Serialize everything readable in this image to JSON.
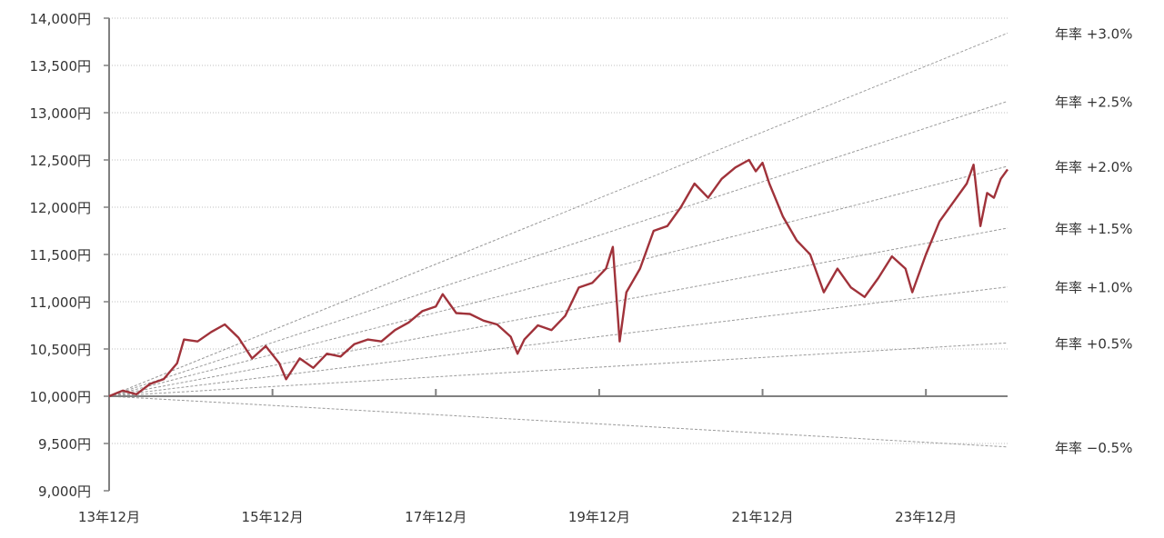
{
  "chart_data": {
    "type": "line",
    "title": "",
    "xlabel": "",
    "ylabel": "",
    "ylim": [
      9000,
      14000
    ],
    "grid": true,
    "y_ticks": [
      9000,
      9500,
      10000,
      10500,
      11000,
      11500,
      12000,
      12500,
      13000,
      13500,
      14000
    ],
    "y_tick_labels": [
      "9,000円",
      "9,500円",
      "10,000円",
      "10,500円",
      "11,000円",
      "11,500円",
      "12,000円",
      "12,500円",
      "13,000円",
      "13,500円",
      "14,000円"
    ],
    "x_range": [
      "2013-12",
      "2024-12"
    ],
    "x_ticks": [
      {
        "label": "13年12月",
        "date": "2013-12"
      },
      {
        "label": "15年12月",
        "date": "2015-12"
      },
      {
        "label": "17年12月",
        "date": "2017-12"
      },
      {
        "label": "19年12月",
        "date": "2019-12"
      },
      {
        "label": "21年12月",
        "date": "2021-12"
      },
      {
        "label": "23年12月",
        "date": "2023-12"
      }
    ],
    "series": [
      {
        "color": "#a0323a",
        "points": [
          [
            "2013-12",
            10000
          ],
          [
            "2014-02",
            10060
          ],
          [
            "2014-04",
            10020
          ],
          [
            "2014-06",
            10130
          ],
          [
            "2014-08",
            10180
          ],
          [
            "2014-10",
            10350
          ],
          [
            "2014-11",
            10600
          ],
          [
            "2015-01",
            10580
          ],
          [
            "2015-03",
            10680
          ],
          [
            "2015-05",
            10760
          ],
          [
            "2015-07",
            10620
          ],
          [
            "2015-09",
            10400
          ],
          [
            "2015-11",
            10530
          ],
          [
            "2016-01",
            10350
          ],
          [
            "2016-02",
            10180
          ],
          [
            "2016-04",
            10400
          ],
          [
            "2016-06",
            10300
          ],
          [
            "2016-08",
            10450
          ],
          [
            "2016-10",
            10420
          ],
          [
            "2016-12",
            10550
          ],
          [
            "2017-02",
            10600
          ],
          [
            "2017-04",
            10580
          ],
          [
            "2017-06",
            10700
          ],
          [
            "2017-08",
            10780
          ],
          [
            "2017-10",
            10900
          ],
          [
            "2017-12",
            10950
          ],
          [
            "2018-01",
            11080
          ],
          [
            "2018-03",
            10880
          ],
          [
            "2018-05",
            10870
          ],
          [
            "2018-07",
            10800
          ],
          [
            "2018-09",
            10760
          ],
          [
            "2018-11",
            10630
          ],
          [
            "2018-12",
            10450
          ],
          [
            "2019-01",
            10600
          ],
          [
            "2019-03",
            10750
          ],
          [
            "2019-05",
            10700
          ],
          [
            "2019-07",
            10850
          ],
          [
            "2019-09",
            11150
          ],
          [
            "2019-11",
            11200
          ],
          [
            "2020-01",
            11350
          ],
          [
            "2020-02",
            11580
          ],
          [
            "2020-03",
            10580
          ],
          [
            "2020-04",
            11100
          ],
          [
            "2020-06",
            11350
          ],
          [
            "2020-08",
            11750
          ],
          [
            "2020-10",
            11800
          ],
          [
            "2020-12",
            12000
          ],
          [
            "2021-02",
            12250
          ],
          [
            "2021-04",
            12100
          ],
          [
            "2021-06",
            12300
          ],
          [
            "2021-08",
            12420
          ],
          [
            "2021-10",
            12500
          ],
          [
            "2021-11",
            12380
          ],
          [
            "2021-12",
            12470
          ],
          [
            "2022-01",
            12250
          ],
          [
            "2022-03",
            11900
          ],
          [
            "2022-05",
            11650
          ],
          [
            "2022-07",
            11500
          ],
          [
            "2022-09",
            11100
          ],
          [
            "2022-11",
            11350
          ],
          [
            "2023-01",
            11150
          ],
          [
            "2023-03",
            11050
          ],
          [
            "2023-05",
            11250
          ],
          [
            "2023-07",
            11480
          ],
          [
            "2023-09",
            11350
          ],
          [
            "2023-10",
            11100
          ],
          [
            "2023-12",
            11500
          ],
          [
            "2024-02",
            11850
          ],
          [
            "2024-04",
            12050
          ],
          [
            "2024-06",
            12250
          ],
          [
            "2024-07",
            12450
          ],
          [
            "2024-08",
            11800
          ],
          [
            "2024-09",
            12150
          ],
          [
            "2024-10",
            12100
          ],
          [
            "2024-11",
            12300
          ],
          [
            "2024-12",
            12400
          ]
        ]
      }
    ],
    "reference_lines": [
      {
        "label": "年率 +3.0%",
        "rate": 0.03
      },
      {
        "label": "年率 +2.5%",
        "rate": 0.025
      },
      {
        "label": "年率 +2.0%",
        "rate": 0.02
      },
      {
        "label": "年率 +1.5%",
        "rate": 0.015
      },
      {
        "label": "年率 +1.0%",
        "rate": 0.01
      },
      {
        "label": "年率 +0.5%",
        "rate": 0.005
      },
      {
        "label": "年率 −0.5%",
        "rate": -0.005
      }
    ],
    "colors": {
      "line": "#a0323a",
      "reference": "#9a9a9a",
      "grid": "#bfbfbf",
      "axis": "#808080"
    }
  }
}
